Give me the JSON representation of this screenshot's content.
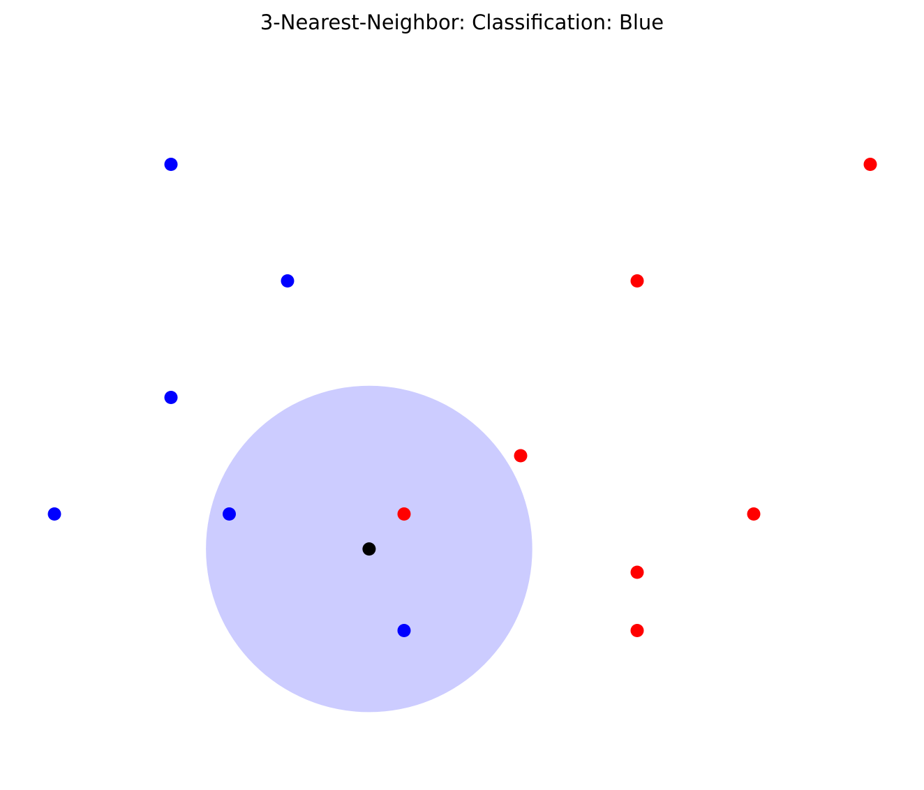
{
  "chart_data": {
    "type": "scatter",
    "title": "3-Nearest-Neighbor: Classification: Blue",
    "xlabel": "",
    "ylabel": "",
    "axes_visible": false,
    "grid": false,
    "xlim": [
      0,
      15
    ],
    "ylim": [
      0,
      11.6
    ],
    "k": 3,
    "query_point": {
      "x": 5.4,
      "y": 3.6,
      "color": "#000000"
    },
    "neighbor_circle": {
      "center_x": 5.4,
      "center_y": 3.6,
      "radius": 2.8,
      "fill": "#ccccff"
    },
    "series": [
      {
        "color": "#0000ff",
        "points": [
          {
            "x": 2,
            "y": 10.2
          },
          {
            "x": 4,
            "y": 8.2
          },
          {
            "x": 2,
            "y": 6.2
          },
          {
            "x": 0,
            "y": 4.2
          },
          {
            "x": 3,
            "y": 4.2
          },
          {
            "x": 6,
            "y": 2.2
          }
        ]
      },
      {
        "color": "#ff0000",
        "points": [
          {
            "x": 14,
            "y": 10.2
          },
          {
            "x": 10,
            "y": 8.2
          },
          {
            "x": 8,
            "y": 5.2
          },
          {
            "x": 6,
            "y": 4.2
          },
          {
            "x": 12,
            "y": 4.2
          },
          {
            "x": 10,
            "y": 3.2
          },
          {
            "x": 10,
            "y": 2.2
          }
        ]
      }
    ]
  }
}
